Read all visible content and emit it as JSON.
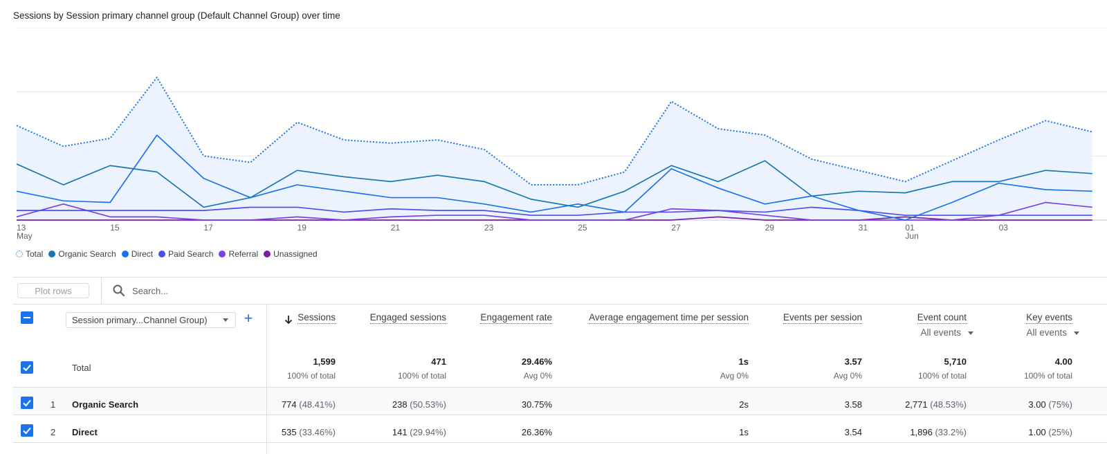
{
  "chart_data": {
    "type": "line",
    "title": "Sessions by Session primary channel group (Default Channel Group) over time",
    "x": [
      "2024-05-13",
      "2024-05-14",
      "2024-05-15",
      "2024-05-16",
      "2024-05-17",
      "2024-05-18",
      "2024-05-19",
      "2024-05-20",
      "2024-05-21",
      "2024-05-22",
      "2024-05-23",
      "2024-05-24",
      "2024-05-25",
      "2024-05-26",
      "2024-05-27",
      "2024-05-28",
      "2024-05-29",
      "2024-05-30",
      "2024-05-31",
      "2024-06-01",
      "2024-06-02",
      "2024-06-03",
      "2024-06-04",
      "2024-06-05"
    ],
    "x_tick_labels": [
      {
        "x": "2024-05-13",
        "label": "13",
        "sub": "May"
      },
      {
        "x": "2024-05-15",
        "label": "15",
        "sub": ""
      },
      {
        "x": "2024-05-17",
        "label": "17",
        "sub": ""
      },
      {
        "x": "2024-05-19",
        "label": "19",
        "sub": ""
      },
      {
        "x": "2024-05-21",
        "label": "21",
        "sub": ""
      },
      {
        "x": "2024-05-23",
        "label": "23",
        "sub": ""
      },
      {
        "x": "2024-05-25",
        "label": "25",
        "sub": ""
      },
      {
        "x": "2024-05-27",
        "label": "27",
        "sub": ""
      },
      {
        "x": "2024-05-29",
        "label": "29",
        "sub": ""
      },
      {
        "x": "2024-05-31",
        "label": "31",
        "sub": ""
      },
      {
        "x": "2024-06-01",
        "label": "01",
        "sub": "Jun"
      },
      {
        "x": "2024-06-03",
        "label": "03",
        "sub": ""
      }
    ],
    "ylim": [
      0,
      120
    ],
    "grid": true,
    "legend_position": "bottom-left",
    "series": [
      {
        "name": "Total",
        "color": "#1a73e8",
        "style": "dotted",
        "fill": "#e8f0fe",
        "values": [
          59,
          46,
          51,
          89,
          40,
          36,
          61,
          50,
          48,
          50,
          44,
          22,
          22,
          30,
          74,
          57,
          53,
          38,
          31,
          24,
          37,
          50,
          62,
          55
        ]
      },
      {
        "name": "Organic Search",
        "color": "#12b5cb",
        "stroke": "#1977b2",
        "values": [
          35,
          22,
          34,
          30,
          8,
          14,
          31,
          27,
          24,
          28,
          24,
          13,
          8,
          18,
          34,
          24,
          37,
          15,
          18,
          17,
          24,
          24,
          31,
          29
        ]
      },
      {
        "name": "Direct",
        "color": "#1a73e8",
        "values": [
          18,
          12,
          11,
          53,
          26,
          14,
          22,
          18,
          14,
          14,
          10,
          5,
          10,
          5,
          32,
          20,
          10,
          15,
          6,
          0,
          11,
          23,
          19,
          18
        ]
      },
      {
        "name": "Paid Search",
        "color": "#4c4fe8",
        "values": [
          6,
          6,
          6,
          6,
          6,
          8,
          8,
          5,
          7,
          6,
          6,
          3,
          3,
          5,
          5,
          6,
          5,
          8,
          6,
          3,
          3,
          3,
          3,
          3
        ]
      },
      {
        "name": "Referral",
        "color": "#7b3fe4",
        "values": [
          2,
          10,
          2,
          2,
          0,
          0,
          2,
          0,
          2,
          3,
          3,
          0,
          0,
          0,
          7,
          6,
          3,
          0,
          0,
          0,
          0,
          3,
          11,
          8
        ]
      },
      {
        "name": "Unassigned",
        "color": "#7a1fa2",
        "values": [
          0,
          0,
          0,
          0,
          0,
          0,
          0,
          0,
          0,
          0,
          0,
          0,
          0,
          0,
          0,
          2,
          0,
          0,
          0,
          2,
          0,
          0,
          0,
          0
        ]
      }
    ]
  },
  "legend": {
    "items": [
      {
        "label": "Total",
        "color": "#1a73e8",
        "style": "dotted"
      },
      {
        "label": "Organic Search",
        "color": "#1977b2",
        "style": "solid"
      },
      {
        "label": "Direct",
        "color": "#1a73e8",
        "style": "solid"
      },
      {
        "label": "Paid Search",
        "color": "#4c4fe8",
        "style": "solid"
      },
      {
        "label": "Referral",
        "color": "#7b3fe4",
        "style": "solid"
      },
      {
        "label": "Unassigned",
        "color": "#7a1fa2",
        "style": "solid"
      }
    ]
  },
  "toolbar": {
    "plot_rows_label": "Plot rows",
    "search_placeholder": "Search..."
  },
  "table": {
    "dimension_select": "Session primary...Channel Group)",
    "add_label": "+",
    "columns": [
      {
        "label": "Sessions",
        "sorted": true,
        "sub": ""
      },
      {
        "label": "Engaged sessions",
        "sub": ""
      },
      {
        "label": "Engagement rate",
        "sub": ""
      },
      {
        "label": "Average engagement time per session",
        "sub": ""
      },
      {
        "label": "Events per session",
        "sub": ""
      },
      {
        "label": "Event count",
        "sub": "All events"
      },
      {
        "label": "Key events",
        "sub": "All events"
      }
    ],
    "total": {
      "label": "Total",
      "values": [
        "1,599",
        "471",
        "29.46%",
        "1s",
        "3.57",
        "5,710",
        "4.00"
      ],
      "subs": [
        "100% of total",
        "100% of total",
        "Avg 0%",
        "Avg 0%",
        "Avg 0%",
        "100% of total",
        "100% of total"
      ]
    },
    "rows": [
      {
        "num": "1",
        "label": "Organic Search",
        "values": [
          [
            "774",
            "(48.41%)"
          ],
          [
            "238",
            "(50.53%)"
          ],
          [
            "30.75%",
            ""
          ],
          [
            "2s",
            ""
          ],
          [
            "3.58",
            ""
          ],
          [
            "2,771",
            "(48.53%)"
          ],
          [
            "3.00",
            "(75%)"
          ]
        ]
      },
      {
        "num": "2",
        "label": "Direct",
        "values": [
          [
            "535",
            "(33.46%)"
          ],
          [
            "141",
            "(29.94%)"
          ],
          [
            "26.36%",
            ""
          ],
          [
            "1s",
            ""
          ],
          [
            "3.54",
            ""
          ],
          [
            "1,896",
            "(33.2%)"
          ],
          [
            "1.00",
            "(25%)"
          ]
        ]
      }
    ]
  },
  "colors": {
    "accent": "#1a73e8",
    "row_highlight": "#f8f9fa",
    "divider": "#dadce0"
  }
}
